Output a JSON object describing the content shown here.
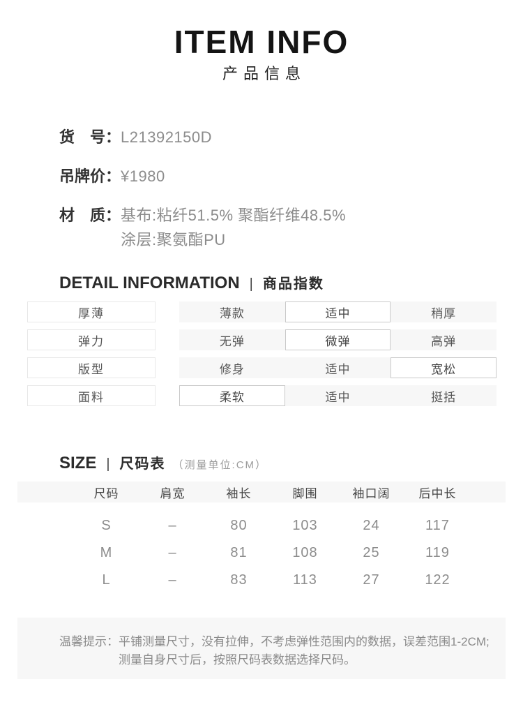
{
  "header": {
    "title_en": "ITEM INFO",
    "title_zh": "产品信息"
  },
  "info": {
    "item_number": {
      "label": "货　号：",
      "value": "L21392150D"
    },
    "tag_price": {
      "label": "吊牌价：",
      "value": "¥1980"
    },
    "material": {
      "label": "材　质：",
      "line1": "基布:粘纤51.5% 聚酯纤维48.5%",
      "line2": "涂层:聚氨酯PU"
    }
  },
  "detail": {
    "title_en": "DETAIL INFORMATION",
    "divider": "|",
    "title_zh": "商品指数",
    "rows": [
      {
        "label": "厚薄",
        "options": [
          "薄款",
          "适中",
          "稍厚"
        ],
        "selected": 1
      },
      {
        "label": "弹力",
        "options": [
          "无弹",
          "微弹",
          "高弹"
        ],
        "selected": 1
      },
      {
        "label": "版型",
        "options": [
          "修身",
          "适中",
          "宽松"
        ],
        "selected": 2
      },
      {
        "label": "面料",
        "options": [
          "柔软",
          "适中",
          "挺括"
        ],
        "selected": 0
      }
    ]
  },
  "size": {
    "title_en": "SIZE",
    "divider": "|",
    "title_zh": "尺码表",
    "unit": "（测量单位:CM）",
    "columns": [
      "尺码",
      "肩宽",
      "袖长",
      "脚围",
      "袖口阔",
      "后中长"
    ],
    "rows": [
      [
        "S",
        "–",
        "80",
        "103",
        "24",
        "117"
      ],
      [
        "M",
        "–",
        "81",
        "108",
        "25",
        "119"
      ],
      [
        "L",
        "–",
        "83",
        "113",
        "27",
        "122"
      ]
    ]
  },
  "notice": {
    "label": "温馨提示：",
    "line1": "平铺测量尺寸，没有拉伸，不考虑弹性范围内的数据，误差范围1-2CM;",
    "line2": "测量自身尺寸后，按照尺码表数据选择尺码。"
  },
  "colors": {
    "text_dark": "#333333",
    "text_gray": "#8c8c8c",
    "cell_bg": "#f7f7f7",
    "selected_border": "#c9c9c9",
    "label_border": "#e8e8e8"
  }
}
